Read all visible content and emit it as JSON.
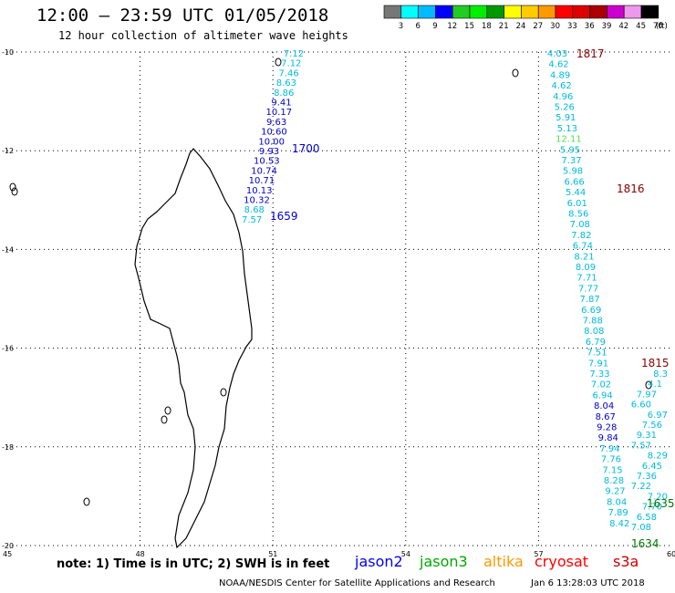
{
  "header": {
    "title": "12:00 — 23:59 UTC 01/05/2018",
    "subtitle": "12 hour collection of altimeter wave heights"
  },
  "colorbar": {
    "unit": "(ft)",
    "labels": [
      "3",
      "6",
      "9",
      "12",
      "15",
      "18",
      "21",
      "24",
      "27",
      "30",
      "33",
      "36",
      "39",
      "42",
      "45",
      "70"
    ],
    "colors": [
      "#777777",
      "#00ffff",
      "#00bbff",
      "#0000ff",
      "#22cc22",
      "#00ee00",
      "#009900",
      "#ffff00",
      "#ffcc00",
      "#ff9900",
      "#ff0000",
      "#dd0000",
      "#aa0000",
      "#cc00cc",
      "#ee99ee",
      "#000000"
    ]
  },
  "axes": {
    "lat_labels": [
      "-10",
      "-12",
      "-14",
      "-16",
      "-18",
      "-20"
    ],
    "lon_labels": [
      "45",
      "48",
      "51",
      "54",
      "57",
      "60"
    ]
  },
  "tracks": {
    "jason2_west": {
      "color": "#0000cc",
      "values": [
        "7.12",
        "7.12",
        "7.46",
        "8.63",
        "8.86",
        "9.41",
        "10.17",
        "9.63",
        "10.60",
        "10.00",
        "9.93",
        "10.53",
        "10.74",
        "10.71",
        "10.13",
        "10.32",
        "8.68",
        "7.57"
      ],
      "time_labels": [
        "1700",
        "1659"
      ]
    },
    "east_track": {
      "values": [
        "4.03",
        "4.62",
        "4.89",
        "4.62",
        "4.96",
        "5.26",
        "5.91",
        "5.13",
        "12.11",
        "5.95",
        "7.37",
        "5.98",
        "6.66",
        "5.44",
        "6.01",
        "8.56",
        "7.08",
        "7.82",
        "6.74",
        "8.21",
        "8.09",
        "7.71",
        "7.77",
        "7.87",
        "6.69",
        "7.88",
        "8.08",
        "6.79",
        "7.51",
        "7.91",
        "7.33",
        "7.02",
        "6.94",
        "8.04",
        "8.67",
        "9.28",
        "9.84",
        "7.94",
        "7.76",
        "7.15",
        "8.28",
        "9.27",
        "8.04",
        "7.89",
        "8.42"
      ],
      "time_labels": [
        "1817",
        "1816",
        "1815"
      ]
    },
    "south_cluster": {
      "values": [
        "8.3",
        "4.1",
        "7.97",
        "6.60",
        "6.97",
        "7.56",
        "9.31",
        "7.57",
        "8.29",
        "6.45",
        "7.36",
        "7.22",
        "7.20",
        "7.70",
        "6.58",
        "7.08"
      ],
      "time_labels": [
        "1635",
        "1634"
      ]
    }
  },
  "legend": {
    "note": "note: 1) Time is in UTC; 2) SWH is in feet",
    "satellites": [
      {
        "name": "jason2",
        "color": "#0000ff"
      },
      {
        "name": "jason3",
        "color": "#00aa00"
      },
      {
        "name": "altika",
        "color": "#ff9900"
      },
      {
        "name": "cryosat",
        "color": "#ff0000"
      },
      {
        "name": "s3a",
        "color": "#cc0000"
      }
    ]
  },
  "footer": {
    "credit": "NOAA/NESDIS Center for Satellite Applications and Research",
    "timestamp": "Jan  6 13:28:03 UTC 2018"
  }
}
